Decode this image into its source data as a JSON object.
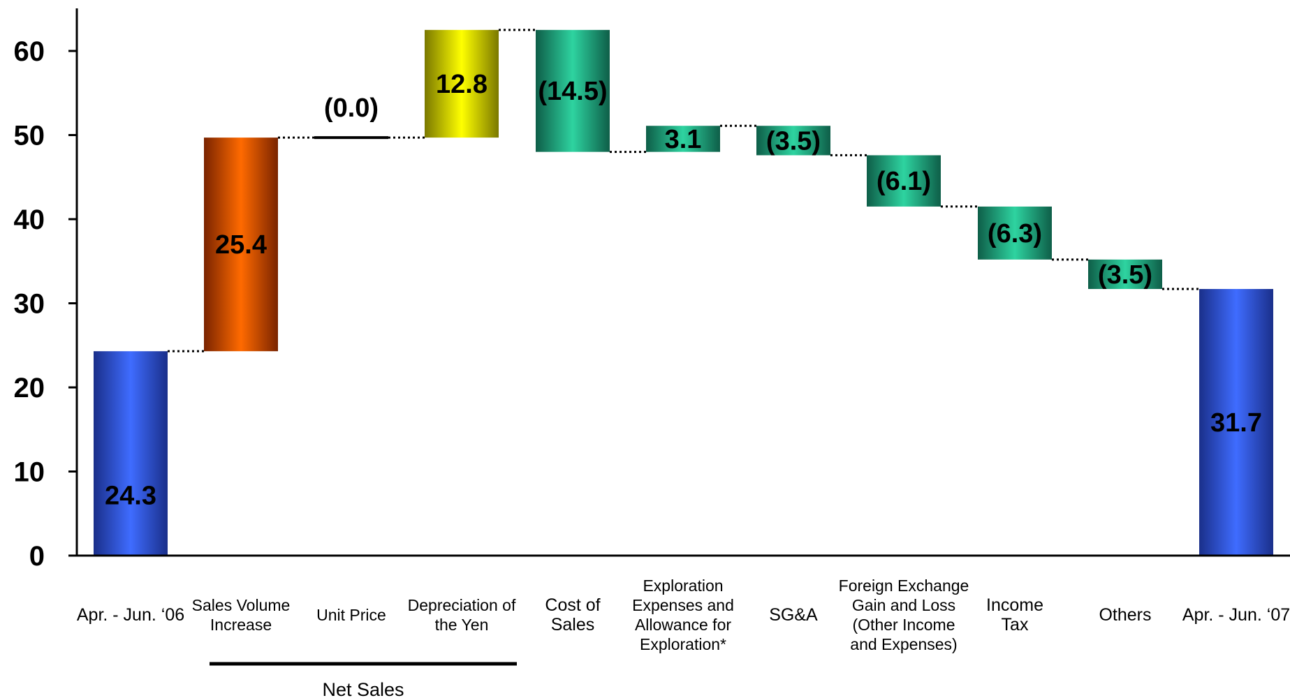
{
  "chart_data": {
    "type": "bar",
    "subtype": "waterfall",
    "ylim": [
      0,
      65
    ],
    "yticks": [
      "0",
      "10",
      "20",
      "30",
      "40",
      "50",
      "60"
    ],
    "grid": false,
    "categories": [
      {
        "label": [
          "Apr. - Jun. ‘06"
        ],
        "kind": "total",
        "start": 0,
        "end": 24.3,
        "value_label": "24.3",
        "color": "blue"
      },
      {
        "label": [
          "Sales Volume",
          "Increase"
        ],
        "kind": "delta",
        "start": 24.3,
        "end": 49.7,
        "value_label": "25.4",
        "color": "orange"
      },
      {
        "label": [
          "Unit Price"
        ],
        "kind": "delta",
        "start": 49.7,
        "end": 49.7,
        "value_label": "(0.0)",
        "color": "black"
      },
      {
        "label": [
          "Depreciation of",
          "the Yen"
        ],
        "kind": "delta",
        "start": 49.7,
        "end": 62.5,
        "value_label": "12.8",
        "color": "yellow"
      },
      {
        "label": [
          "Cost of",
          "Sales"
        ],
        "kind": "delta",
        "start": 62.5,
        "end": 48.0,
        "value_label": "(14.5)",
        "color": "green"
      },
      {
        "label": [
          "Exploration",
          "Expenses and",
          "Allowance for",
          "Exploration*"
        ],
        "kind": "delta",
        "start": 48.0,
        "end": 51.1,
        "value_label": "3.1",
        "color": "green"
      },
      {
        "label": [
          "SG&A"
        ],
        "kind": "delta",
        "start": 51.1,
        "end": 47.6,
        "value_label": "(3.5)",
        "color": "green"
      },
      {
        "label": [
          "Foreign Exchange",
          "Gain and Loss",
          "(Other Income",
          "and Expenses)"
        ],
        "kind": "delta",
        "start": 47.6,
        "end": 41.5,
        "value_label": "(6.1)",
        "color": "green"
      },
      {
        "label": [
          "Income",
          "Tax"
        ],
        "kind": "delta",
        "start": 41.5,
        "end": 35.2,
        "value_label": "(6.3)",
        "color": "green"
      },
      {
        "label": [
          "Others"
        ],
        "kind": "delta",
        "start": 35.2,
        "end": 31.7,
        "value_label": "(3.5)",
        "color": "green"
      },
      {
        "label": [
          "Apr. - Jun. ‘07"
        ],
        "kind": "total",
        "start": 0,
        "end": 31.7,
        "value_label": "31.7",
        "color": "blue"
      }
    ],
    "group": {
      "label": "Net Sales",
      "spans": [
        1,
        3
      ]
    },
    "colors": {
      "blue": [
        "#1a2f8a",
        "#3f6cff",
        "#1a2f8a"
      ],
      "orange": [
        "#7a2400",
        "#ff6a00",
        "#7a2400"
      ],
      "yellow": [
        "#7a7800",
        "#ffff00",
        "#7a7800"
      ],
      "green": [
        "#0e5e48",
        "#2ed3a0",
        "#0e5e48"
      ],
      "black": [
        "#000000",
        "#000000",
        "#000000"
      ]
    }
  }
}
